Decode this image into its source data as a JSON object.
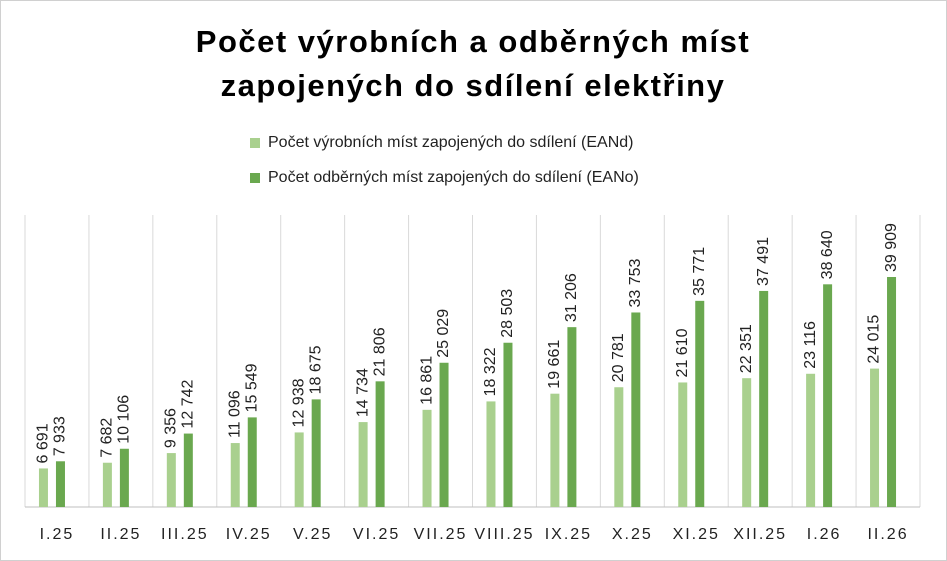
{
  "chart_data": {
    "type": "bar",
    "title": "Počet výrobních a odběrných míst zapojených do sdílení elektřiny",
    "categories": [
      "I.25",
      "II.25",
      "III.25",
      "IV.25",
      "V.25",
      "VI.25",
      "VII.25",
      "VIII.25",
      "IX.25",
      "X.25",
      "XI.25",
      "XII.25",
      "I.26",
      "II.26"
    ],
    "series": [
      {
        "name": "Počet výrobních míst zapojených do sdílení (EANd)",
        "color": "#a9d08e",
        "values": [
          6691,
          7682,
          9356,
          11096,
          12938,
          14734,
          16861,
          18322,
          19661,
          20781,
          21610,
          22351,
          23116,
          24015
        ],
        "value_labels": [
          "6 691",
          "7 682",
          "9 356",
          "11 096",
          "12 938",
          "14 734",
          "16 861",
          "18 322",
          "19 661",
          "20 781",
          "21 610",
          "22 351",
          "23 116",
          "24 015"
        ]
      },
      {
        "name": "Počet odběrných míst zapojených do sdílení (EANo)",
        "color": "#6aa84f",
        "values": [
          7933,
          10106,
          12742,
          15549,
          18675,
          21806,
          25029,
          28503,
          31206,
          33753,
          35771,
          37491,
          38640,
          39909
        ],
        "value_labels": [
          "7 933",
          "10 106",
          "12 742",
          "15 549",
          "18 675",
          "21 806",
          "25 029",
          "28 503",
          "31 206",
          "33 753",
          "35 771",
          "37 491",
          "38 640",
          "39 909"
        ]
      }
    ]
  }
}
